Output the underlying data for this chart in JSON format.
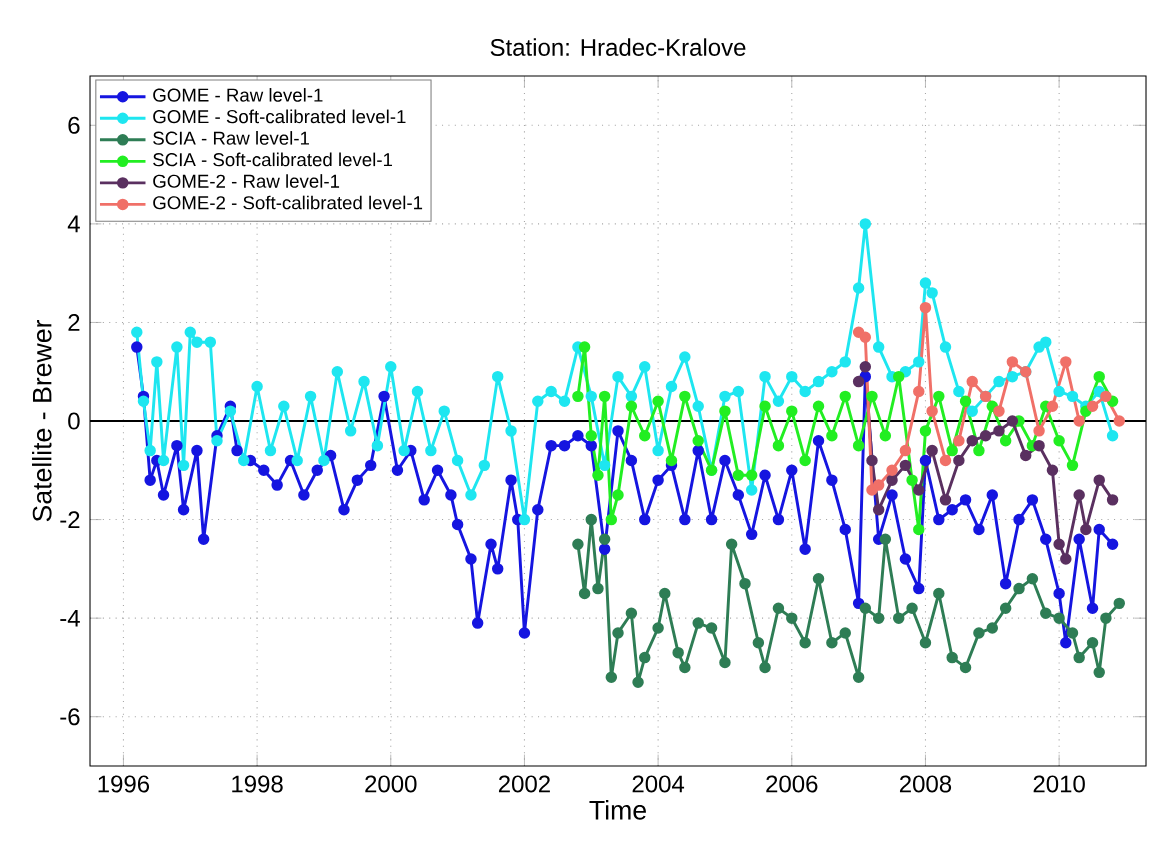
{
  "chart_data": {
    "type": "line",
    "title": "Station: Hradec-Kralove",
    "xlabel": "Time",
    "ylabel": "Satellite - Brewer",
    "xlim": [
      1995.5,
      2011.3
    ],
    "ylim": [
      -7,
      7
    ],
    "xticks": [
      1996,
      1998,
      2000,
      2002,
      2004,
      2006,
      2008,
      2010
    ],
    "yticks": [
      -6,
      -4,
      -2,
      0,
      2,
      4,
      6
    ],
    "grid": true,
    "legend": "top left",
    "marker": "circle",
    "line_style": "solid",
    "ref_lines": [
      {
        "axis": "y",
        "value": 0,
        "color": "#000000"
      }
    ],
    "series": [
      {
        "name": "GOME - Raw level-1",
        "color": "#1515e0",
        "x": [
          1996.2,
          1996.3,
          1996.4,
          1996.5,
          1996.6,
          1996.8,
          1996.9,
          1997.1,
          1997.2,
          1997.4,
          1997.6,
          1997.7,
          1997.9,
          1998.1,
          1998.3,
          1998.5,
          1998.7,
          1998.9,
          1999.1,
          1999.3,
          1999.5,
          1999.7,
          1999.9,
          2000.1,
          2000.3,
          2000.5,
          2000.7,
          2000.9,
          2001.0,
          2001.2,
          2001.3,
          2001.5,
          2001.6,
          2001.8,
          2001.9,
          2002.0,
          2002.2,
          2002.4,
          2002.6,
          2002.8,
          2003.0,
          2003.2,
          2003.4,
          2003.6,
          2003.8,
          2004.0,
          2004.2,
          2004.4,
          2004.6,
          2004.8,
          2005.0,
          2005.2,
          2005.4,
          2005.6,
          2005.8,
          2006.0,
          2006.2,
          2006.4,
          2006.6,
          2006.8,
          2007.0,
          2007.1,
          2007.3,
          2007.5,
          2007.7,
          2007.9,
          2008.0,
          2008.2,
          2008.4,
          2008.6,
          2008.8,
          2009.0,
          2009.2,
          2009.4,
          2009.6,
          2009.8,
          2010.0,
          2010.1,
          2010.3,
          2010.5,
          2010.6,
          2010.8
        ],
        "values": [
          1.5,
          0.5,
          -1.2,
          -0.8,
          -1.5,
          -0.5,
          -1.8,
          -0.6,
          -2.4,
          -0.3,
          0.3,
          -0.6,
          -0.8,
          -1.0,
          -1.3,
          -0.8,
          -1.5,
          -1.0,
          -0.7,
          -1.8,
          -1.2,
          -0.9,
          0.5,
          -1.0,
          -0.6,
          -1.6,
          -1.0,
          -1.5,
          -2.1,
          -2.8,
          -4.1,
          -2.5,
          -3.0,
          -1.2,
          -2.0,
          -4.3,
          -1.8,
          -0.5,
          -0.5,
          -0.3,
          -0.5,
          -2.6,
          -0.2,
          -0.8,
          -2.0,
          -1.2,
          -0.9,
          -2.0,
          -0.6,
          -2.0,
          -0.8,
          -1.5,
          -2.3,
          -1.1,
          -2.0,
          -1.0,
          -2.6,
          -0.4,
          -1.2,
          -2.2,
          -3.7,
          0.9,
          -2.4,
          -1.5,
          -2.8,
          -3.4,
          -0.8,
          -2.0,
          -1.8,
          -1.6,
          -2.2,
          -1.5,
          -3.3,
          -2.0,
          -1.6,
          -2.4,
          -3.5,
          -4.5,
          -2.4,
          -3.8,
          -2.2,
          -2.5
        ]
      },
      {
        "name": "GOME - Soft-calibrated level-1",
        "color": "#1ee6f0",
        "x": [
          1996.2,
          1996.3,
          1996.4,
          1996.5,
          1996.6,
          1996.8,
          1996.9,
          1997.0,
          1997.1,
          1997.3,
          1997.4,
          1997.6,
          1997.8,
          1998.0,
          1998.2,
          1998.4,
          1998.6,
          1998.8,
          1999.0,
          1999.2,
          1999.4,
          1999.6,
          1999.8,
          2000.0,
          2000.2,
          2000.4,
          2000.6,
          2000.8,
          2001.0,
          2001.2,
          2001.4,
          2001.6,
          2001.8,
          2002.0,
          2002.2,
          2002.4,
          2002.6,
          2002.8,
          2003.0,
          2003.2,
          2003.4,
          2003.6,
          2003.8,
          2004.0,
          2004.2,
          2004.4,
          2004.6,
          2004.8,
          2005.0,
          2005.2,
          2005.4,
          2005.6,
          2005.8,
          2006.0,
          2006.2,
          2006.4,
          2006.6,
          2006.8,
          2007.0,
          2007.1,
          2007.3,
          2007.5,
          2007.7,
          2007.9,
          2008.0,
          2008.1,
          2008.3,
          2008.5,
          2008.7,
          2008.9,
          2009.1,
          2009.3,
          2009.5,
          2009.7,
          2009.8,
          2010.0,
          2010.2,
          2010.4,
          2010.6,
          2010.8
        ],
        "values": [
          1.8,
          0.4,
          -0.6,
          1.2,
          -0.8,
          1.5,
          -0.9,
          1.8,
          1.6,
          1.6,
          -0.4,
          0.2,
          -0.8,
          0.7,
          -0.6,
          0.3,
          -0.8,
          0.5,
          -0.8,
          1.0,
          -0.2,
          0.8,
          -0.5,
          1.1,
          -0.6,
          0.6,
          -0.6,
          0.2,
          -0.8,
          -1.5,
          -0.9,
          0.9,
          -0.2,
          -2.0,
          0.4,
          0.6,
          0.4,
          1.5,
          0.5,
          -0.9,
          0.9,
          0.5,
          1.1,
          -0.6,
          0.7,
          1.3,
          0.3,
          -1.0,
          0.5,
          0.6,
          -1.4,
          0.9,
          0.4,
          0.9,
          0.6,
          0.8,
          1.0,
          1.2,
          2.7,
          4.0,
          1.5,
          0.9,
          1.0,
          1.2,
          2.8,
          2.6,
          1.5,
          0.6,
          0.2,
          0.5,
          0.8,
          0.9,
          1.0,
          1.5,
          1.6,
          0.6,
          0.5,
          0.3,
          0.6,
          -0.3
        ]
      },
      {
        "name": "SCIA - Raw level-1",
        "color": "#2e7d55",
        "x": [
          2002.8,
          2002.9,
          2003.0,
          2003.1,
          2003.2,
          2003.3,
          2003.4,
          2003.6,
          2003.7,
          2003.8,
          2004.0,
          2004.1,
          2004.3,
          2004.4,
          2004.6,
          2004.8,
          2005.0,
          2005.1,
          2005.3,
          2005.5,
          2005.6,
          2005.8,
          2006.0,
          2006.2,
          2006.4,
          2006.6,
          2006.8,
          2007.0,
          2007.1,
          2007.3,
          2007.4,
          2007.6,
          2007.8,
          2008.0,
          2008.2,
          2008.4,
          2008.6,
          2008.8,
          2009.0,
          2009.2,
          2009.4,
          2009.6,
          2009.8,
          2010.0,
          2010.2,
          2010.3,
          2010.5,
          2010.6,
          2010.7,
          2010.9
        ],
        "values": [
          -2.5,
          -3.5,
          -2.0,
          -3.4,
          -2.4,
          -5.2,
          -4.3,
          -3.9,
          -5.3,
          -4.8,
          -4.2,
          -3.5,
          -4.7,
          -5.0,
          -4.1,
          -4.2,
          -4.9,
          -2.5,
          -3.3,
          -4.5,
          -5.0,
          -3.8,
          -4.0,
          -4.5,
          -3.2,
          -4.5,
          -4.3,
          -5.2,
          -3.8,
          -4.0,
          -2.4,
          -4.0,
          -3.8,
          -4.5,
          -3.5,
          -4.8,
          -5.0,
          -4.3,
          -4.2,
          -3.8,
          -3.4,
          -3.2,
          -3.9,
          -4.0,
          -4.3,
          -4.8,
          -4.5,
          -5.1,
          -4.0,
          -3.7
        ]
      },
      {
        "name": "SCIA - Soft-calibrated level-1",
        "color": "#22ee22",
        "x": [
          2002.8,
          2002.9,
          2003.0,
          2003.1,
          2003.2,
          2003.3,
          2003.4,
          2003.6,
          2003.8,
          2004.0,
          2004.2,
          2004.4,
          2004.6,
          2004.8,
          2005.0,
          2005.2,
          2005.4,
          2005.6,
          2005.8,
          2006.0,
          2006.2,
          2006.4,
          2006.6,
          2006.8,
          2007.0,
          2007.2,
          2007.4,
          2007.6,
          2007.8,
          2007.9,
          2008.0,
          2008.2,
          2008.4,
          2008.6,
          2008.8,
          2009.0,
          2009.2,
          2009.4,
          2009.6,
          2009.8,
          2010.0,
          2010.2,
          2010.4,
          2010.6,
          2010.8
        ],
        "values": [
          0.5,
          1.5,
          -0.3,
          -1.1,
          0.5,
          -2.0,
          -1.5,
          0.3,
          -0.3,
          0.4,
          -0.8,
          0.5,
          -0.4,
          -1.0,
          0.2,
          -1.1,
          -1.1,
          0.3,
          -0.5,
          0.2,
          -0.8,
          0.3,
          -0.3,
          0.5,
          -0.5,
          0.5,
          -0.3,
          0.9,
          -1.2,
          -2.2,
          -0.2,
          0.5,
          -0.6,
          0.4,
          -0.6,
          0.3,
          -0.4,
          0.0,
          -0.5,
          0.3,
          -0.4,
          -0.9,
          0.2,
          0.9,
          0.4
        ]
      },
      {
        "name": "GOME-2 - Raw level-1",
        "color": "#5a3060",
        "x": [
          2007.0,
          2007.1,
          2007.2,
          2007.3,
          2007.5,
          2007.7,
          2007.9,
          2008.1,
          2008.3,
          2008.5,
          2008.7,
          2008.9,
          2009.1,
          2009.3,
          2009.5,
          2009.7,
          2009.9,
          2010.0,
          2010.1,
          2010.3,
          2010.4,
          2010.6,
          2010.8
        ],
        "values": [
          0.8,
          1.1,
          -0.8,
          -1.8,
          -1.2,
          -0.9,
          -1.4,
          -0.6,
          -1.6,
          -0.8,
          -0.4,
          -0.3,
          -0.2,
          0.0,
          -0.7,
          -0.5,
          -1.0,
          -2.5,
          -2.8,
          -1.5,
          -2.2,
          -1.2,
          -1.6
        ]
      },
      {
        "name": "GOME-2 - Soft-calibrated level-1",
        "color": "#f07068",
        "x": [
          2007.0,
          2007.1,
          2007.2,
          2007.3,
          2007.5,
          2007.7,
          2007.9,
          2008.0,
          2008.1,
          2008.3,
          2008.5,
          2008.7,
          2008.9,
          2009.1,
          2009.3,
          2009.5,
          2009.7,
          2009.9,
          2010.1,
          2010.3,
          2010.5,
          2010.7,
          2010.9
        ],
        "values": [
          1.8,
          1.7,
          -1.4,
          -1.3,
          -1.0,
          -0.6,
          0.6,
          2.3,
          0.2,
          -0.8,
          -0.4,
          0.8,
          0.5,
          0.2,
          1.2,
          1.0,
          -0.2,
          0.3,
          1.2,
          0.0,
          0.3,
          0.5,
          0.0
        ]
      }
    ]
  }
}
